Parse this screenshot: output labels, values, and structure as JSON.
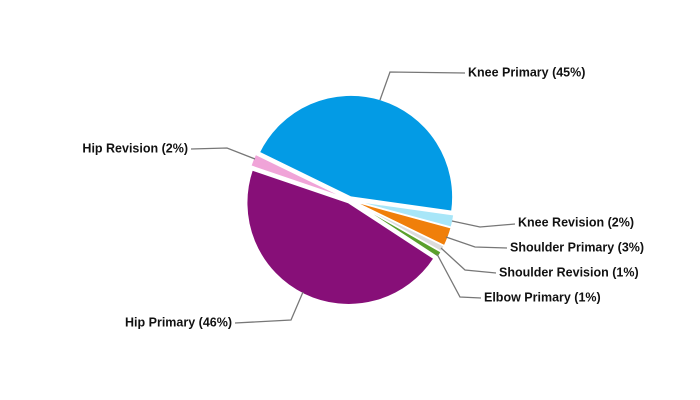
{
  "chart_data": {
    "type": "pie",
    "categories": [
      "Knee Primary (45%)",
      "Knee Revision (2%)",
      "Shoulder Primary (3%)",
      "Shoulder Revision (1%)",
      "Elbow Primary (1%)",
      "Hip Primary (46%)",
      "Hip Revision (2%)"
    ],
    "values": [
      45,
      2,
      3,
      1,
      1,
      46,
      2
    ],
    "colors": [
      "#039be5",
      "#a8e6f8",
      "#f07f0a",
      "#dcdcdc",
      "#5aa02c",
      "#870f78",
      "#f0a4d8"
    ]
  }
}
